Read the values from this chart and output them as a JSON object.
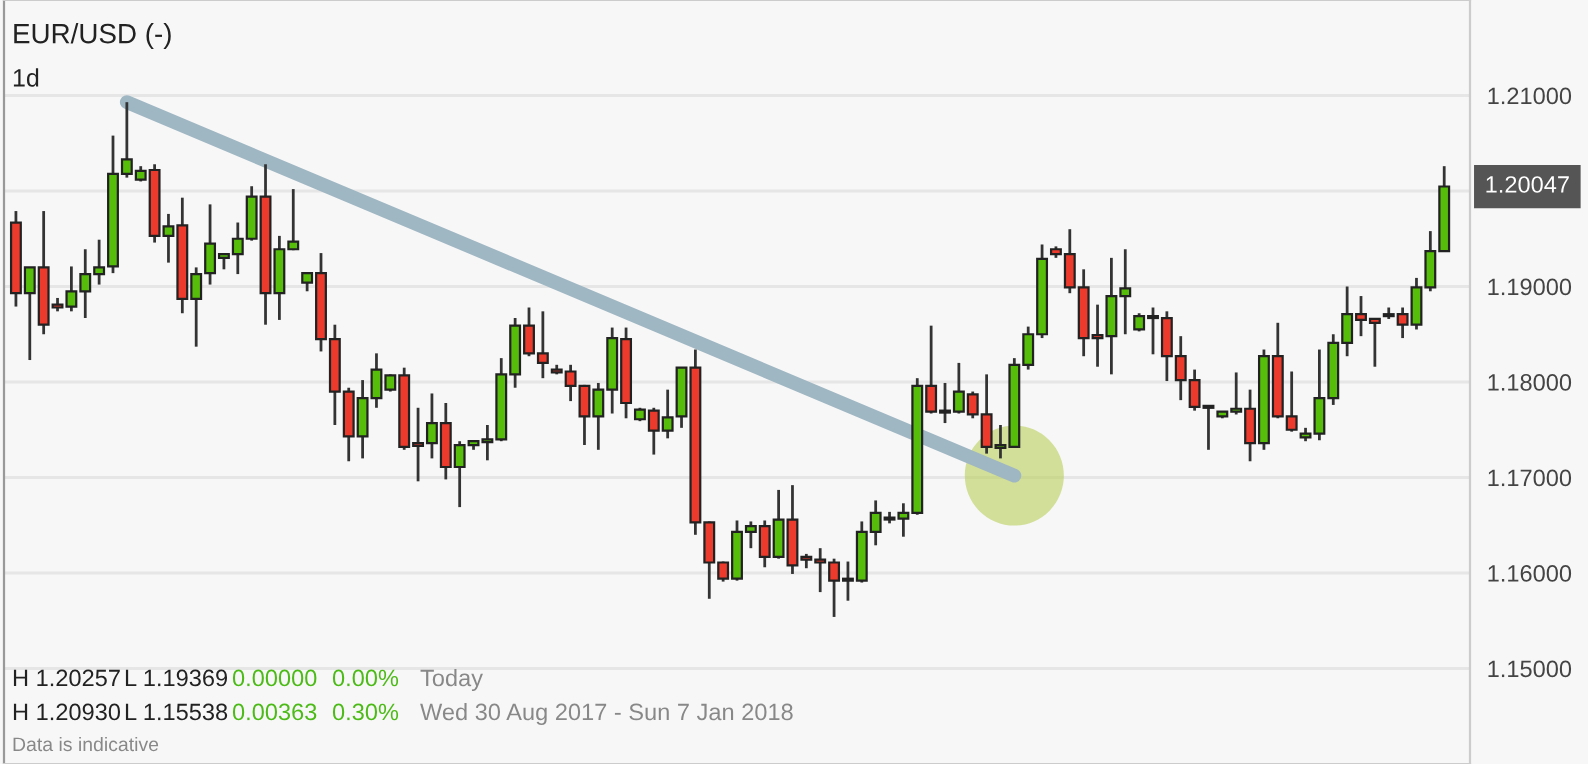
{
  "chart_data": {
    "type": "candlestick",
    "title": "EUR/USD (-)",
    "subtitle": "1d",
    "categories": [
      null,
      null,
      null,
      null,
      null,
      null,
      null,
      null,
      null,
      null,
      null,
      null,
      null,
      null,
      null,
      null,
      null,
      null,
      null,
      null,
      null,
      null,
      null,
      null,
      null,
      null,
      null,
      null,
      null,
      null,
      null,
      null,
      null,
      null,
      null,
      null,
      null,
      null,
      null,
      null,
      null,
      null,
      null,
      null,
      null,
      null,
      null,
      null,
      null,
      null,
      null,
      null,
      null,
      null,
      null,
      null,
      null,
      null,
      null,
      null,
      null,
      null,
      null,
      null,
      null,
      null,
      null,
      null,
      null,
      null,
      null,
      null,
      null,
      null,
      null,
      null,
      null,
      null,
      null,
      null,
      null,
      null,
      null,
      null,
      null,
      null,
      null,
      null,
      null,
      null,
      null,
      null,
      null,
      null,
      null,
      null,
      null,
      null,
      null,
      null,
      null,
      null,
      null,
      null
    ],
    "ohlc": [
      [
        1.1967,
        1.1979,
        1.1879,
        1.1893
      ],
      [
        1.1893,
        1.192,
        1.1823,
        1.192
      ],
      [
        1.192,
        1.1979,
        1.185,
        1.186
      ],
      [
        1.1881,
        1.1888,
        1.1874,
        1.1878
      ],
      [
        1.1879,
        1.1921,
        1.1874,
        1.1895
      ],
      [
        1.1895,
        1.1939,
        1.1867,
        1.1913
      ],
      [
        1.1913,
        1.1949,
        1.1902,
        1.192
      ],
      [
        1.1921,
        1.2058,
        1.1914,
        1.2018
      ],
      [
        1.2018,
        1.2093,
        1.2014,
        1.2033
      ],
      [
        1.2012,
        1.2026,
        1.201,
        1.2021
      ],
      [
        1.2022,
        1.2028,
        1.1946,
        1.1953
      ],
      [
        1.1953,
        1.1976,
        1.1925,
        1.1963
      ],
      [
        1.1964,
        1.1993,
        1.1872,
        1.1887
      ],
      [
        1.1887,
        1.192,
        1.1837,
        1.1913
      ],
      [
        1.1914,
        1.1986,
        1.1902,
        1.1945
      ],
      [
        1.193,
        1.1935,
        1.1918,
        1.1934
      ],
      [
        1.1934,
        1.1967,
        1.1913,
        1.195
      ],
      [
        1.195,
        1.2005,
        1.1948,
        1.1994
      ],
      [
        1.1994,
        1.2028,
        1.186,
        1.1893
      ],
      [
        1.1893,
        1.1953,
        1.1865,
        1.1939
      ],
      [
        1.1939,
        1.2002,
        1.1938,
        1.1947
      ],
      [
        1.1904,
        1.1914,
        1.1895,
        1.1914
      ],
      [
        1.1914,
        1.1935,
        1.1832,
        1.1845
      ],
      [
        1.1845,
        1.186,
        1.1755,
        1.179
      ],
      [
        1.179,
        1.1794,
        1.1717,
        1.1743
      ],
      [
        1.1743,
        1.1802,
        1.172,
        1.1783
      ],
      [
        1.1783,
        1.183,
        1.1773,
        1.1813
      ],
      [
        1.1792,
        1.1808,
        1.179,
        1.1807
      ],
      [
        1.1807,
        1.1815,
        1.1729,
        1.1732
      ],
      [
        1.1736,
        1.1773,
        1.1696,
        1.1733
      ],
      [
        1.1736,
        1.1788,
        1.172,
        1.1757
      ],
      [
        1.1757,
        1.1778,
        1.1698,
        1.1711
      ],
      [
        1.1711,
        1.1738,
        1.1669,
        1.1734
      ],
      [
        1.1734,
        1.1739,
        1.1729,
        1.1738
      ],
      [
        1.1737,
        1.1755,
        1.1718,
        1.174
      ],
      [
        1.174,
        1.1825,
        1.1738,
        1.1808
      ],
      [
        1.1808,
        1.1867,
        1.1794,
        1.1859
      ],
      [
        1.1859,
        1.1878,
        1.1827,
        1.183
      ],
      [
        1.183,
        1.1874,
        1.1804,
        1.182
      ],
      [
        1.1813,
        1.1818,
        1.1808,
        1.181
      ],
      [
        1.1811,
        1.1818,
        1.178,
        1.1796
      ],
      [
        1.1796,
        1.1797,
        1.1734,
        1.1764
      ],
      [
        1.1764,
        1.1799,
        1.1729,
        1.1792
      ],
      [
        1.1792,
        1.1857,
        1.1767,
        1.1846
      ],
      [
        1.1845,
        1.1857,
        1.1762,
        1.1778
      ],
      [
        1.1761,
        1.1773,
        1.1759,
        1.1771
      ],
      [
        1.177,
        1.1773,
        1.1724,
        1.1749
      ],
      [
        1.1749,
        1.1792,
        1.1741,
        1.1763
      ],
      [
        1.1764,
        1.1815,
        1.1752,
        1.1815
      ],
      [
        1.1815,
        1.1834,
        1.164,
        1.1653
      ],
      [
        1.1653,
        1.1654,
        1.1573,
        1.1611
      ],
      [
        1.1611,
        1.1612,
        1.1591,
        1.1594
      ],
      [
        1.1594,
        1.1655,
        1.1592,
        1.1643
      ],
      [
        1.1643,
        1.1654,
        1.1626,
        1.1649
      ],
      [
        1.1649,
        1.1655,
        1.1606,
        1.1617
      ],
      [
        1.1617,
        1.1687,
        1.1615,
        1.1656
      ],
      [
        1.1656,
        1.1692,
        1.1599,
        1.1608
      ],
      [
        1.1617,
        1.162,
        1.1605,
        1.1614
      ],
      [
        1.1614,
        1.1626,
        1.158,
        1.1611
      ],
      [
        1.1611,
        1.1615,
        1.1554,
        1.1592
      ],
      [
        1.1594,
        1.1612,
        1.1571,
        1.1592
      ],
      [
        1.1592,
        1.1654,
        1.159,
        1.1643
      ],
      [
        1.1643,
        1.1676,
        1.1629,
        1.1663
      ],
      [
        1.1656,
        1.1664,
        1.1652,
        1.1658
      ],
      [
        1.1657,
        1.1673,
        1.1638,
        1.1663
      ],
      [
        1.1663,
        1.1804,
        1.1661,
        1.1796
      ],
      [
        1.1796,
        1.1859,
        1.1767,
        1.1769
      ],
      [
        1.177,
        1.1799,
        1.1757,
        1.1768
      ],
      [
        1.1769,
        1.182,
        1.1767,
        1.179
      ],
      [
        1.1787,
        1.179,
        1.1762,
        1.1766
      ],
      [
        1.1766,
        1.1808,
        1.1725,
        1.1732
      ],
      [
        1.1731,
        1.1755,
        1.172,
        1.1734
      ],
      [
        1.1732,
        1.1825,
        1.1731,
        1.1818
      ],
      [
        1.1818,
        1.1858,
        1.1813,
        1.185
      ],
      [
        1.185,
        1.1944,
        1.1846,
        1.1929
      ],
      [
        1.1939,
        1.1942,
        1.193,
        1.1934
      ],
      [
        1.1934,
        1.196,
        1.1893,
        1.1899
      ],
      [
        1.1899,
        1.1918,
        1.1827,
        1.1846
      ],
      [
        1.1849,
        1.1881,
        1.1816,
        1.1846
      ],
      [
        1.1848,
        1.193,
        1.1808,
        1.189
      ],
      [
        1.189,
        1.1939,
        1.185,
        1.1898
      ],
      [
        1.1855,
        1.1872,
        1.1853,
        1.1869
      ],
      [
        1.1867,
        1.1878,
        1.1829,
        1.1869
      ],
      [
        1.1867,
        1.1874,
        1.1801,
        1.1827
      ],
      [
        1.1827,
        1.1848,
        1.1781,
        1.1802
      ],
      [
        1.1802,
        1.1813,
        1.177,
        1.1774
      ],
      [
        1.1775,
        1.1775,
        1.1729,
        1.1773
      ],
      [
        1.1764,
        1.1769,
        1.1762,
        1.1769
      ],
      [
        1.1769,
        1.181,
        1.1766,
        1.1772
      ],
      [
        1.1772,
        1.1792,
        1.1717,
        1.1736
      ],
      [
        1.1736,
        1.1834,
        1.1729,
        1.1827
      ],
      [
        1.1827,
        1.1862,
        1.1762,
        1.1764
      ],
      [
        1.1764,
        1.1811,
        1.1748,
        1.175
      ],
      [
        1.1742,
        1.1752,
        1.1738,
        1.1746
      ],
      [
        1.1746,
        1.1834,
        1.1739,
        1.1783
      ],
      [
        1.1783,
        1.185,
        1.1776,
        1.1841
      ],
      [
        1.1841,
        1.19,
        1.1827,
        1.1871
      ],
      [
        1.1871,
        1.189,
        1.1848,
        1.1865
      ],
      [
        1.1866,
        1.1867,
        1.1816,
        1.1862
      ],
      [
        1.1869,
        1.1878,
        1.1866,
        1.1871
      ],
      [
        1.1871,
        1.1878,
        1.1846,
        1.186
      ],
      [
        1.186,
        1.1909,
        1.1855,
        1.1899
      ],
      [
        1.1899,
        1.1958,
        1.1895,
        1.1937
      ],
      [
        1.1937,
        1.2026,
        1.1937,
        1.20047
      ]
    ],
    "series": [
      {
        "type": "line",
        "values": [
          null,
          null,
          null,
          null,
          null,
          null,
          null,
          null,
          1.2093,
          null,
          null,
          null,
          null,
          null,
          null,
          null,
          null,
          null,
          null,
          null,
          null,
          null,
          null,
          null,
          null,
          null,
          null,
          null,
          null,
          null,
          null,
          null,
          null,
          null,
          null,
          null,
          null,
          null,
          null,
          null,
          null,
          null,
          null,
          null,
          null,
          null,
          null,
          null,
          null,
          null,
          null,
          null,
          null,
          null,
          null,
          null,
          null,
          null,
          null,
          null,
          null,
          null,
          null,
          null,
          null,
          null,
          null,
          null,
          null,
          null,
          null,
          null,
          1.1702,
          null,
          null,
          null,
          null,
          null,
          null,
          null,
          null,
          null,
          null,
          null,
          null,
          null,
          null,
          null,
          null,
          null,
          null,
          null,
          null,
          null,
          null,
          null,
          null,
          null,
          null,
          null,
          null,
          null,
          null,
          null
        ],
        "color": "#9fb6c3"
      }
    ],
    "ylim": [
      1.14,
      1.22
    ],
    "yticks": [
      {
        "value": 1.15,
        "label": "1.15000"
      },
      {
        "value": 1.16,
        "label": "1.16000"
      },
      {
        "value": 1.17,
        "label": "1.17000"
      },
      {
        "value": 1.18,
        "label": "1.18000"
      },
      {
        "value": 1.19,
        "label": "1.19000"
      },
      {
        "value": 1.2,
        "label": null
      },
      {
        "value": 1.21,
        "label": "1.21000"
      }
    ],
    "grid": "y",
    "annotations": [
      "H 1.20257",
      "L 1.19369",
      "0.00000",
      "0.00%",
      "Today",
      "H 1.20930",
      "L 1.15538",
      "0.00363",
      "0.30%",
      "Wed 30 Aug 2017 - Sun 7 Jan 2018",
      "Data is indicative",
      "1.20047"
    ]
  }
}
